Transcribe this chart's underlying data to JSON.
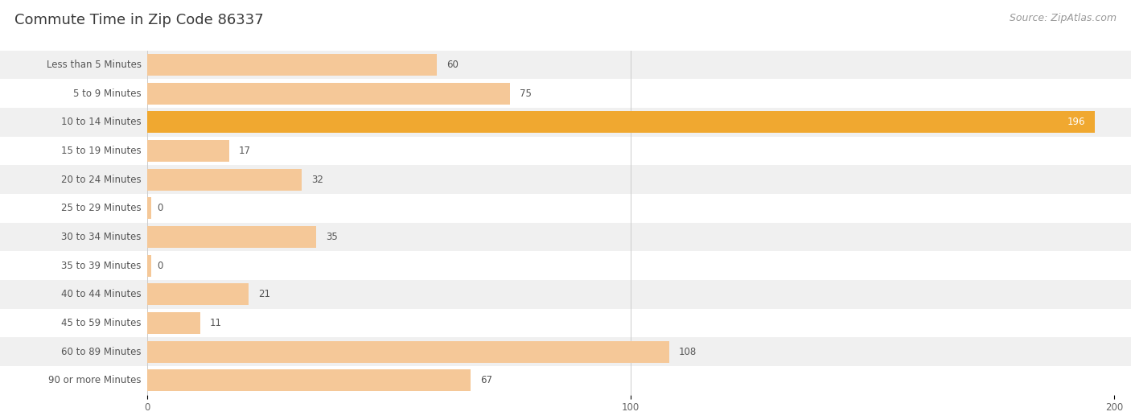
{
  "title": "Commute Time in Zip Code 86337",
  "source": "Source: ZipAtlas.com",
  "categories": [
    "Less than 5 Minutes",
    "5 to 9 Minutes",
    "10 to 14 Minutes",
    "15 to 19 Minutes",
    "20 to 24 Minutes",
    "25 to 29 Minutes",
    "30 to 34 Minutes",
    "35 to 39 Minutes",
    "40 to 44 Minutes",
    "45 to 59 Minutes",
    "60 to 89 Minutes",
    "90 or more Minutes"
  ],
  "values": [
    60,
    75,
    196,
    17,
    32,
    0,
    35,
    0,
    21,
    11,
    108,
    67
  ],
  "bar_color_normal": "#f5c eighteen97",
  "bar_color_highlight": "#f0a830",
  "highlight_index": 2,
  "xlim": [
    0,
    200
  ],
  "xticks": [
    0,
    100,
    200
  ],
  "background_color": "#ffffff",
  "row_bg_light": "#f0f0f0",
  "row_bg_white": "#ffffff",
  "title_color": "#3a3a3a",
  "title_fontsize": 13,
  "source_color": "#999999",
  "source_fontsize": 9,
  "label_fontsize": 8.5,
  "value_fontsize": 8.5,
  "label_color": "#555555",
  "value_color_normal": "#555555",
  "value_color_highlight": "#ffffff",
  "bar_color_normal_hex": "#f5c898",
  "bar_color_highlight_hex": "#f0a830"
}
